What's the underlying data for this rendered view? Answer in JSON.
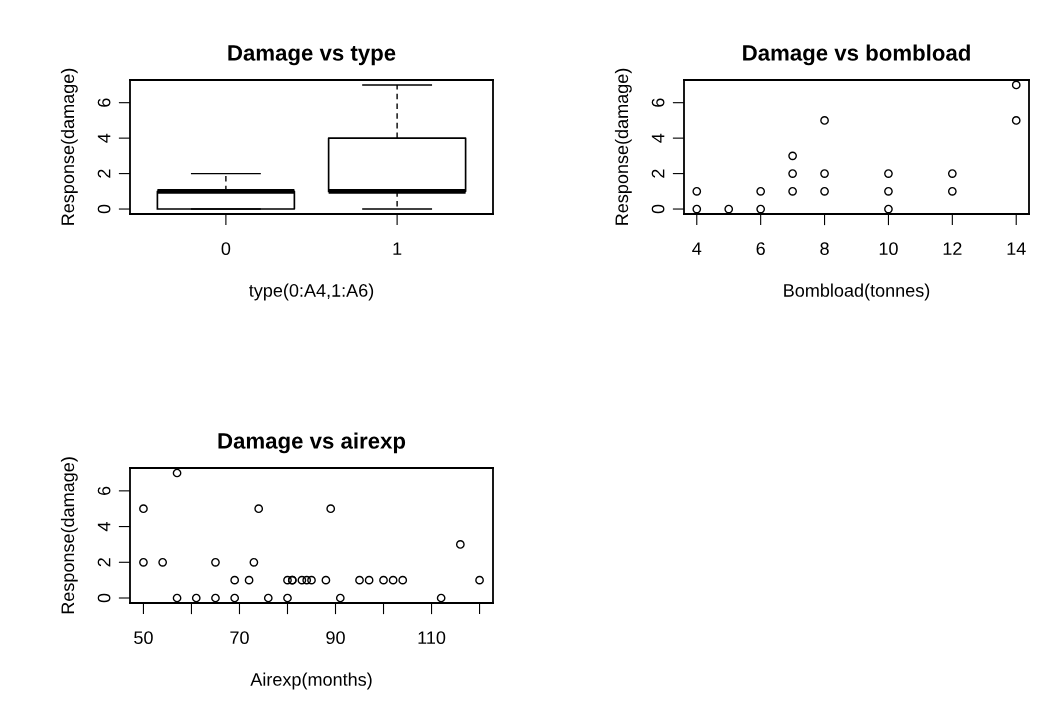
{
  "chart_data": [
    {
      "type": "box",
      "title": "Damage vs type",
      "xlabel": "type(0:A4,1:A6)",
      "ylabel": "Response(damage)",
      "categories": [
        "0",
        "1"
      ],
      "boxes": [
        {
          "low": 0,
          "q1": 0,
          "median": 1,
          "q3": 1,
          "high": 2
        },
        {
          "low": 0,
          "q1": 1,
          "median": 1,
          "q3": 4,
          "high": 7
        }
      ],
      "ylim": [
        -0.28,
        7.28
      ],
      "yticks": [
        0,
        2,
        4,
        6
      ],
      "grid": false
    },
    {
      "type": "scatter",
      "title": "Damage vs bombload",
      "xlabel": "Bombload(tonnes)",
      "ylabel": "Response(damage)",
      "marker": "circle",
      "x": [
        4,
        4,
        5,
        6,
        6,
        7,
        7,
        7,
        8,
        8,
        8,
        10,
        10,
        10,
        12,
        12,
        14,
        14
      ],
      "values": [
        0,
        1,
        0,
        0,
        1,
        1,
        2,
        3,
        1,
        2,
        5,
        0,
        1,
        2,
        1,
        2,
        5,
        7
      ],
      "xlim": [
        3.6,
        14.4
      ],
      "xticks": [
        4,
        6,
        8,
        10,
        12,
        14
      ],
      "ylim": [
        -0.28,
        7.28
      ],
      "yticks": [
        0,
        2,
        4,
        6
      ],
      "grid": false
    },
    {
      "type": "scatter",
      "title": "Damage vs airexp",
      "xlabel": "Airexp(months)",
      "ylabel": "Response(damage)",
      "marker": "circle",
      "x": [
        50,
        50,
        54,
        57,
        57,
        61,
        65,
        65,
        69,
        69,
        72,
        73,
        74,
        76,
        80,
        80,
        81,
        81,
        83,
        84,
        85,
        88,
        89,
        91,
        95,
        97,
        100,
        102,
        104,
        112,
        116,
        120
      ],
      "values": [
        5,
        2,
        2,
        7,
        0,
        0,
        0,
        2,
        0,
        1,
        1,
        2,
        5,
        0,
        0,
        1,
        1,
        1,
        1,
        1,
        1,
        1,
        5,
        0,
        1,
        1,
        1,
        1,
        1,
        0,
        3,
        1
      ],
      "xlim": [
        47.2,
        122.8
      ],
      "xticks": [
        50,
        {
          "value": 60,
          "label": null
        },
        70,
        {
          "value": 80,
          "label": null
        },
        90,
        {
          "value": 100,
          "label": null
        },
        110,
        {
          "value": 120,
          "label": null
        }
      ],
      "ylim": [
        -0.28,
        7.28
      ],
      "yticks": [
        0,
        2,
        4,
        6
      ],
      "grid": false
    }
  ]
}
